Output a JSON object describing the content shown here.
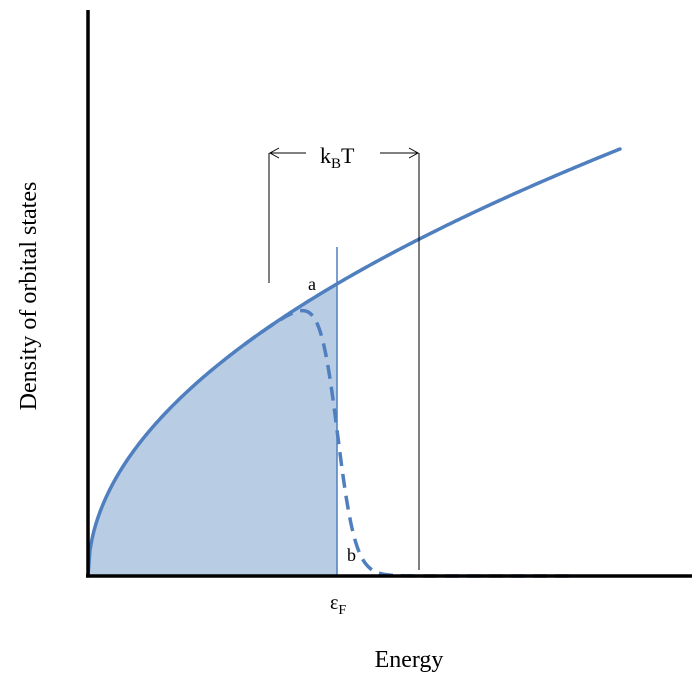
{
  "diagram": {
    "y_axis_label": "Density of orbital states",
    "x_axis_label": "Energy",
    "fermi_label": {
      "main": "ε",
      "sub": "F"
    },
    "kbt_label": {
      "main": "k",
      "sub": "B",
      "tail": "T"
    },
    "region_a_label": "a",
    "region_b_label": "b",
    "colors": {
      "curve": "#4f7fbf",
      "fill": "#b8cce4",
      "axes": "#000000"
    }
  }
}
